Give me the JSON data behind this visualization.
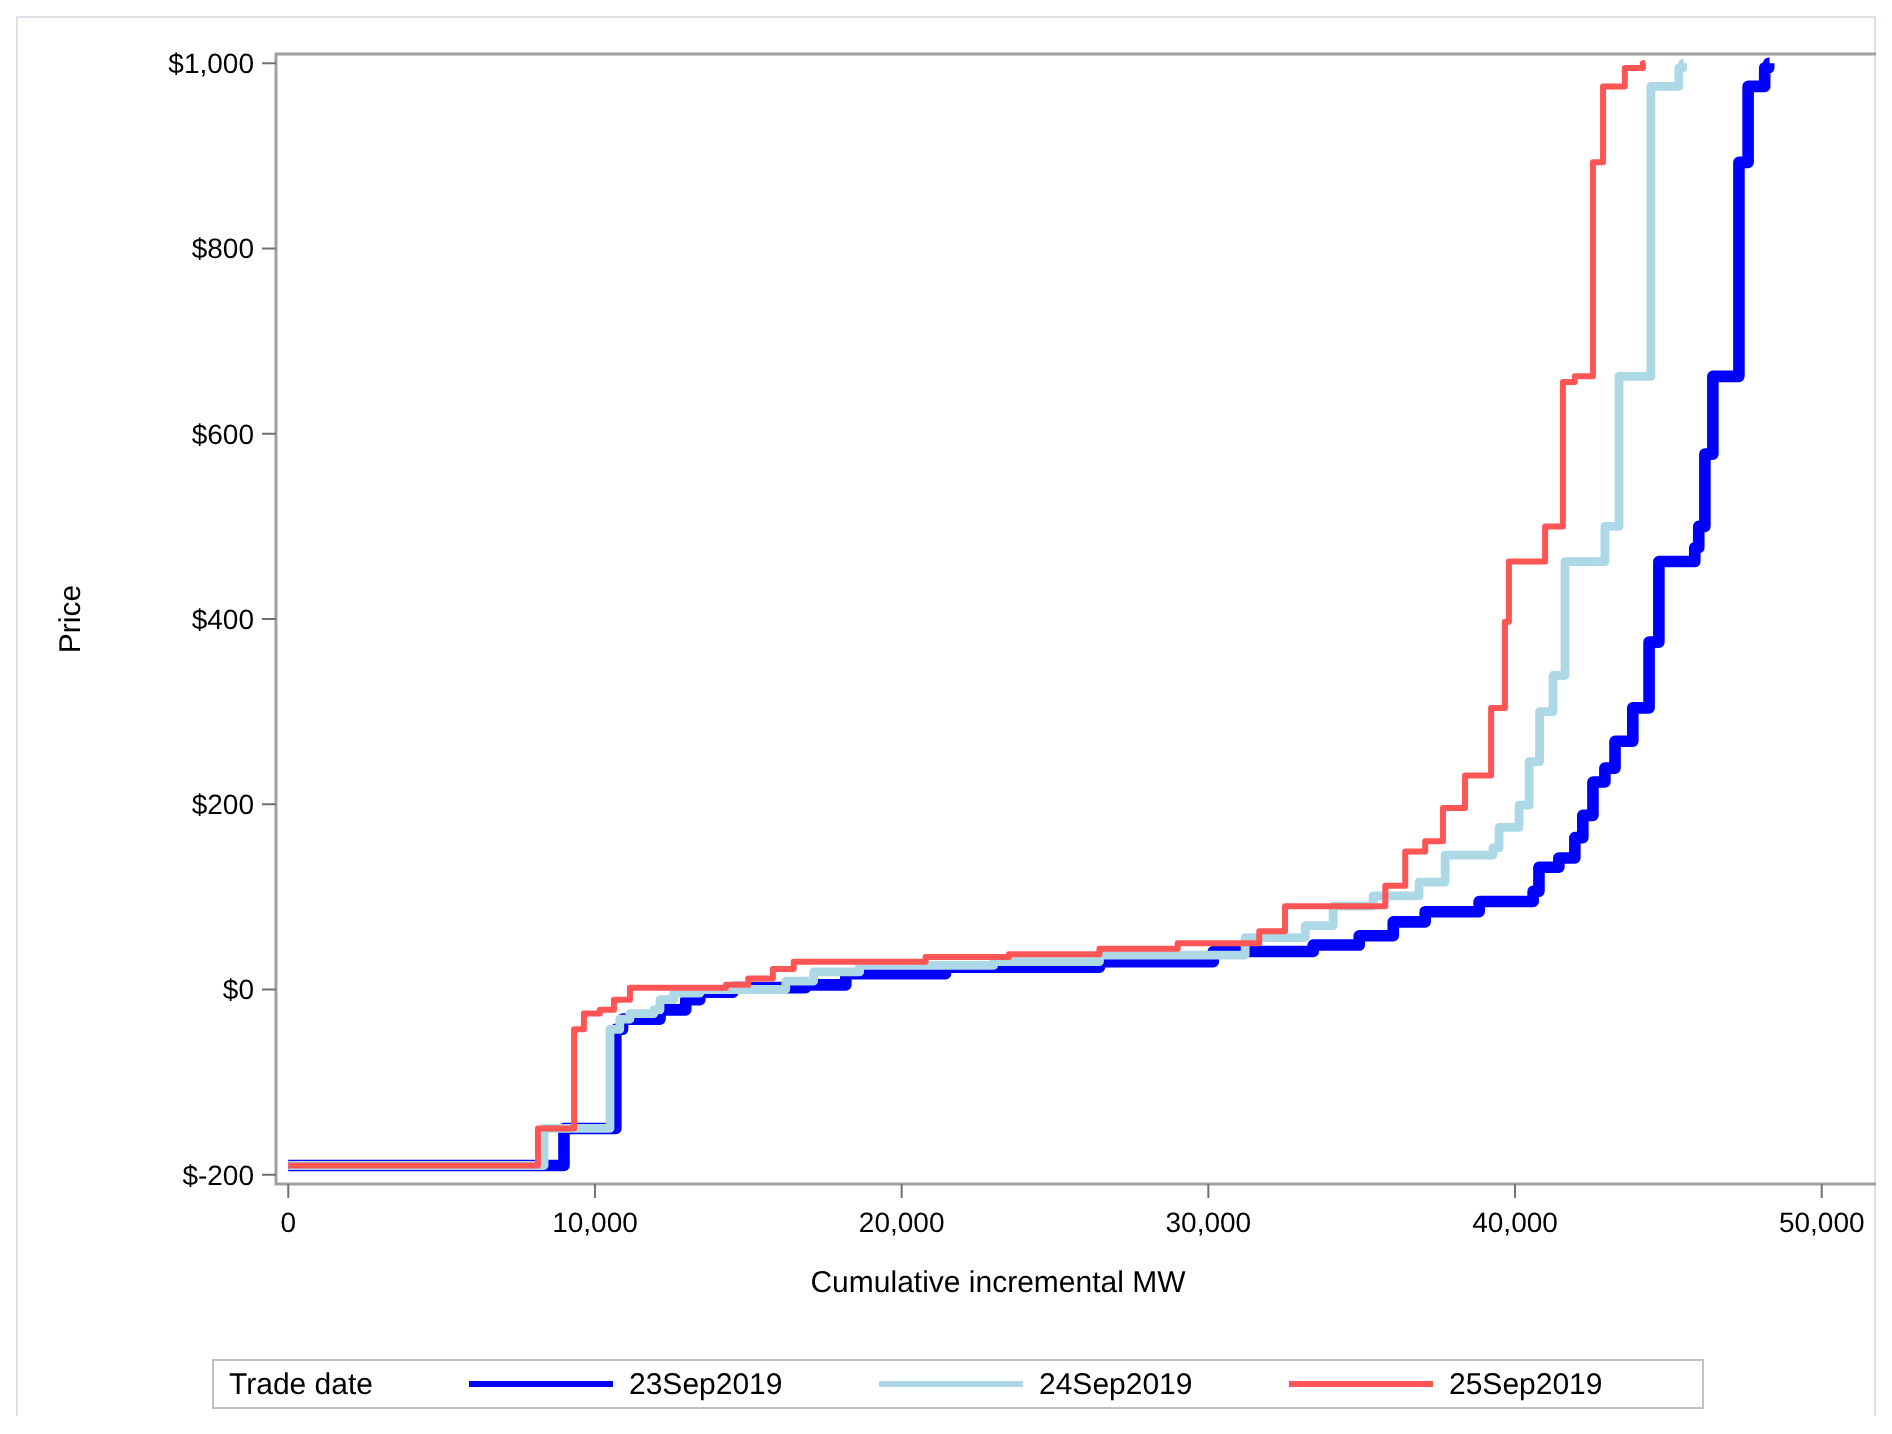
{
  "chart_data": {
    "type": "step",
    "xlabel": "Cumulative incremental MW",
    "ylabel": "Price",
    "legend_title": "Trade date",
    "legend": "bottom",
    "grid": false,
    "marker": "none",
    "line_style": "solid",
    "xlim": [
      -400,
      51900
    ],
    "ylim": [
      -210,
      1010
    ],
    "xticks": [
      0,
      {
        "value": 10000,
        "label": "10,000"
      },
      {
        "value": 20000,
        "label": "20,000"
      },
      {
        "value": 30000,
        "label": "30,000"
      },
      {
        "value": 40000,
        "label": "40,000"
      },
      {
        "value": 50000,
        "label": "50,000"
      }
    ],
    "yticks": [
      {
        "value": -200,
        "label": "$-200"
      },
      {
        "value": 0,
        "label": "$0"
      },
      {
        "value": 200,
        "label": "$200"
      },
      {
        "value": 400,
        "label": "$400"
      },
      {
        "value": 600,
        "label": "$600"
      },
      {
        "value": 800,
        "label": "$800"
      },
      {
        "value": 1000,
        "label": "$1,000"
      }
    ],
    "series": [
      {
        "name": "23Sep2019",
        "color": "#0000ff",
        "x": [
          0,
          8990,
          10680,
          10900,
          12120,
          12960,
          13420,
          14500,
          16870,
          18180,
          21430,
          26450,
          30160,
          33420,
          34920,
          36030,
          37070,
          38830,
          40590,
          40780,
          41430,
          41950,
          42210,
          42540,
          42930,
          43260,
          43840,
          44370,
          44690,
          45860,
          45990,
          46190,
          46450,
          47300,
          47600,
          48140,
          48270,
          48300
        ],
        "values": [
          -190,
          -150,
          -43,
          -32,
          -22,
          -11,
          -3,
          2,
          5,
          17,
          24,
          30,
          41,
          48,
          58,
          73,
          84,
          95,
          106,
          132,
          142,
          164,
          188,
          224,
          239,
          268,
          304,
          375,
          462,
          477,
          500,
          578,
          662,
          893,
          975,
          995,
          1000,
          1000
        ]
      },
      {
        "name": "24Sep2019",
        "color": "#add8e6",
        "x": [
          0,
          8340,
          10490,
          10810,
          11140,
          11920,
          12120,
          12570,
          13420,
          16220,
          17130,
          18630,
          23000,
          26450,
          31200,
          33160,
          34070,
          35370,
          36870,
          37720,
          39280,
          39480,
          40130,
          40460,
          40800,
          41240,
          41630,
          42930,
          43390,
          44430,
          45340,
          45470,
          45500
        ],
        "values": [
          -190,
          -150,
          -43,
          -32,
          -26,
          -22,
          -11,
          -4,
          0,
          9,
          19,
          26,
          30,
          37,
          56,
          69,
          90,
          101,
          116,
          145,
          153,
          175,
          199,
          246,
          300,
          339,
          462,
          500,
          662,
          975,
          995,
          1000,
          1000
        ]
      },
      {
        "name": "25Sep2019",
        "color": "#ff5555",
        "x": [
          0,
          8140,
          9320,
          9640,
          10160,
          10620,
          11140,
          14270,
          15000,
          15800,
          16480,
          20780,
          23500,
          26450,
          29000,
          31660,
          32500,
          35770,
          36420,
          37070,
          37650,
          38370,
          39220,
          39670,
          39800,
          40980,
          41560,
          41950,
          42540,
          42870,
          43580,
          44170,
          44250
        ],
        "values": [
          -190,
          -150,
          -43,
          -26,
          -22,
          -11,
          2,
          5,
          12,
          22,
          30,
          35,
          38,
          44,
          50,
          63,
          90,
          112,
          149,
          160,
          196,
          231,
          304,
          397,
          462,
          500,
          656,
          662,
          893,
          975,
          995,
          1000,
          1000
        ]
      }
    ]
  }
}
